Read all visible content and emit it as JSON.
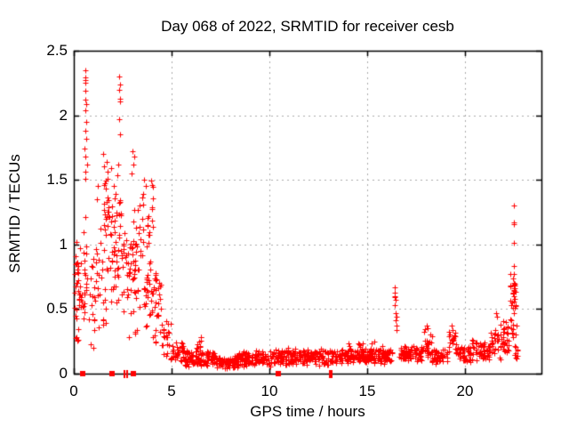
{
  "chart_data": {
    "type": "scatter",
    "title": "Day 068 of 2022, SRMTID for receiver cesb",
    "xlabel": "GPS time / hours",
    "ylabel": "SRMTID / TECUs",
    "xlim": [
      0,
      23.91
    ],
    "ylim": [
      0,
      2.5
    ],
    "xticks": [
      0,
      5,
      10,
      15,
      20
    ],
    "xtick_labels": [
      "0",
      "5",
      "10",
      "15",
      "20"
    ],
    "yticks": [
      0,
      0.5,
      1,
      1.5,
      2,
      2.5
    ],
    "ytick_labels": [
      "0",
      "0.5",
      "1",
      "1.5",
      "2",
      "2.5"
    ],
    "grid": true,
    "legend_position": "none",
    "marker": "plus",
    "marker_size": 7,
    "marker_color": "#ff0000",
    "grid_color": "#aaaaaa",
    "axis_color": "#000000",
    "background_color": "#ffffff",
    "seed": 42,
    "notable_points": [
      [
        0.57,
        2.35
      ],
      [
        0.58,
        2.29
      ],
      [
        0.6,
        2.27
      ],
      [
        0.59,
        2.25
      ],
      [
        0.61,
        2.19
      ],
      [
        0.6,
        2.12
      ],
      [
        0.62,
        2.09
      ],
      [
        0.6,
        2.04
      ],
      [
        0.63,
        1.95
      ],
      [
        0.61,
        1.88
      ],
      [
        0.64,
        1.82
      ],
      [
        0.55,
        1.74
      ],
      [
        0.58,
        1.68
      ],
      [
        0.66,
        1.62
      ],
      [
        0.6,
        1.56
      ],
      [
        0.57,
        1.51
      ],
      [
        2.33,
        2.3
      ],
      [
        2.36,
        2.24
      ],
      [
        2.34,
        2.2
      ],
      [
        2.37,
        2.13
      ],
      [
        2.35,
        2.11
      ],
      [
        2.31,
        1.97
      ],
      [
        2.38,
        1.85
      ],
      [
        3.0,
        1.72
      ],
      [
        3.1,
        1.68
      ],
      [
        3.05,
        1.62
      ],
      [
        2.95,
        1.55
      ],
      [
        1.25,
        1.45
      ],
      [
        1.18,
        1.35
      ],
      [
        3.35,
        1.3
      ],
      [
        3.6,
        1.5
      ],
      [
        3.7,
        1.45
      ],
      [
        0.15,
        1.02
      ],
      [
        0.3,
        0.97
      ],
      [
        16.4,
        0.67
      ],
      [
        16.42,
        0.63
      ],
      [
        16.41,
        0.6
      ],
      [
        16.43,
        0.59
      ],
      [
        16.44,
        0.57
      ],
      [
        16.4,
        0.53
      ],
      [
        16.46,
        0.47
      ],
      [
        16.48,
        0.44
      ],
      [
        16.45,
        0.41
      ],
      [
        16.5,
        0.37
      ],
      [
        16.52,
        0.34
      ],
      [
        18.05,
        0.37
      ],
      [
        18.1,
        0.35
      ],
      [
        19.3,
        0.37
      ],
      [
        19.35,
        0.34
      ],
      [
        21.6,
        0.47
      ],
      [
        21.63,
        0.44
      ],
      [
        22.5,
        1.3
      ],
      [
        22.49,
        1.17
      ],
      [
        22.51,
        1.16
      ],
      [
        22.5,
        1.01
      ],
      [
        22.48,
        0.83
      ],
      [
        22.52,
        0.77
      ],
      [
        22.47,
        0.74
      ],
      [
        22.5,
        0.7
      ],
      [
        22.53,
        0.68
      ],
      [
        22.49,
        0.66
      ],
      [
        22.51,
        0.64
      ],
      [
        22.46,
        0.62
      ],
      [
        22.5,
        0.6
      ]
    ],
    "scatter_segments": [
      {
        "x0": 0.05,
        "x1": 0.35,
        "n": 26,
        "y0": 0.35,
        "y1": 1.05
      },
      {
        "x0": 0.08,
        "x1": 0.32,
        "n": 6,
        "y0": 0.18,
        "y1": 0.35
      },
      {
        "x0": 0.35,
        "x1": 0.55,
        "n": 10,
        "y0": 0.3,
        "y1": 0.72
      },
      {
        "x0": 0.5,
        "x1": 0.7,
        "n": 16,
        "y0": 0.25,
        "y1": 1.45
      },
      {
        "x0": 0.75,
        "x1": 1.1,
        "n": 18,
        "y0": 0.15,
        "y1": 0.95
      },
      {
        "x0": 1.1,
        "x1": 1.45,
        "n": 14,
        "y0": 0.25,
        "y1": 1.35
      },
      {
        "x0": 1.45,
        "x1": 1.8,
        "n": 40,
        "y0": 0.3,
        "y1": 1.78
      },
      {
        "x0": 1.85,
        "x1": 2.3,
        "n": 42,
        "y0": 0.3,
        "y1": 1.65
      },
      {
        "x0": 2.3,
        "x1": 2.45,
        "n": 10,
        "y0": 0.8,
        "y1": 1.5
      },
      {
        "x0": 2.45,
        "x1": 2.9,
        "n": 30,
        "y0": 0.25,
        "y1": 1.3
      },
      {
        "x0": 2.9,
        "x1": 3.45,
        "n": 40,
        "y0": 0.2,
        "y1": 1.42
      },
      {
        "x0": 3.5,
        "x1": 4.05,
        "n": 55,
        "y0": 0.2,
        "y1": 1.55
      },
      {
        "x0": 4.05,
        "x1": 4.5,
        "n": 28,
        "y0": 0.15,
        "y1": 0.8
      },
      {
        "x0": 4.5,
        "x1": 4.95,
        "n": 22,
        "y0": 0.08,
        "y1": 0.45
      },
      {
        "x0": 4.95,
        "x1": 5.6,
        "n": 40,
        "y0": 0.07,
        "y1": 0.26
      },
      {
        "x0": 5.6,
        "x1": 7.2,
        "n": 110,
        "y0": 0.05,
        "y1": 0.2
      },
      {
        "x0": 6.3,
        "x1": 6.55,
        "n": 8,
        "y0": 0.18,
        "y1": 0.3
      },
      {
        "x0": 7.2,
        "x1": 8.4,
        "n": 80,
        "y0": 0.03,
        "y1": 0.15
      },
      {
        "x0": 8.4,
        "x1": 10.3,
        "n": 130,
        "y0": 0.05,
        "y1": 0.18
      },
      {
        "x0": 10.3,
        "x1": 13.0,
        "n": 190,
        "y0": 0.06,
        "y1": 0.2
      },
      {
        "x0": 13.0,
        "x1": 16.3,
        "n": 230,
        "y0": 0.07,
        "y1": 0.2
      },
      {
        "x0": 14.0,
        "x1": 16.2,
        "n": 10,
        "y0": 0.2,
        "y1": 0.26
      },
      {
        "x0": 16.6,
        "x1": 17.85,
        "n": 80,
        "y0": 0.07,
        "y1": 0.22
      },
      {
        "x0": 17.9,
        "x1": 18.3,
        "n": 24,
        "y0": 0.12,
        "y1": 0.36
      },
      {
        "x0": 18.3,
        "x1": 19.1,
        "n": 50,
        "y0": 0.07,
        "y1": 0.2
      },
      {
        "x0": 19.15,
        "x1": 19.55,
        "n": 20,
        "y0": 0.12,
        "y1": 0.36
      },
      {
        "x0": 19.55,
        "x1": 20.3,
        "n": 45,
        "y0": 0.08,
        "y1": 0.22
      },
      {
        "x0": 20.35,
        "x1": 20.65,
        "n": 14,
        "y0": 0.1,
        "y1": 0.28
      },
      {
        "x0": 20.65,
        "x1": 21.3,
        "n": 40,
        "y0": 0.08,
        "y1": 0.25
      },
      {
        "x0": 21.3,
        "x1": 22.25,
        "n": 60,
        "y0": 0.1,
        "y1": 0.42
      },
      {
        "x0": 22.3,
        "x1": 22.62,
        "n": 28,
        "y0": 0.25,
        "y1": 0.78
      },
      {
        "x0": 22.55,
        "x1": 22.72,
        "n": 12,
        "y0": 0.1,
        "y1": 0.4
      }
    ],
    "zero_squares": [
      0.45,
      1.95,
      3.05,
      10.45
    ],
    "zero_bars": [
      2.6,
      2.75,
      13.1,
      13.2
    ]
  }
}
